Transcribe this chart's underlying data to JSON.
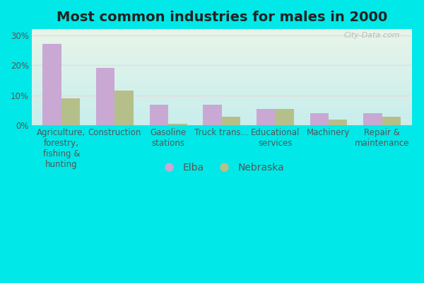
{
  "title": "Most common industries for males in 2000",
  "categories": [
    "Agriculture,\nforestry,\nfishing &\nhunting",
    "Construction",
    "Gasoline\nstations",
    "Truck trans...",
    "Educational\nservices",
    "Machinery",
    "Repair &\nmaintenance"
  ],
  "elba_values": [
    27.0,
    19.0,
    7.0,
    7.0,
    5.5,
    4.0,
    4.0
  ],
  "nebraska_values": [
    9.0,
    11.5,
    0.5,
    3.0,
    5.5,
    2.0,
    3.0
  ],
  "elba_color": "#c9a8d4",
  "nebraska_color": "#b5bf8a",
  "background_outer": "#00e8e8",
  "background_inner_top": "#e8f5e9",
  "background_inner_bottom": "#c8eeed",
  "ylim": [
    0,
    32
  ],
  "yticks": [
    0,
    10,
    20,
    30
  ],
  "ytick_labels": [
    "0%",
    "10%",
    "20%",
    "30%"
  ],
  "bar_width": 0.35,
  "legend_labels": [
    "Elba",
    "Nebraska"
  ],
  "watermark": "City-Data.com",
  "title_fontsize": 14,
  "tick_fontsize": 8.5
}
